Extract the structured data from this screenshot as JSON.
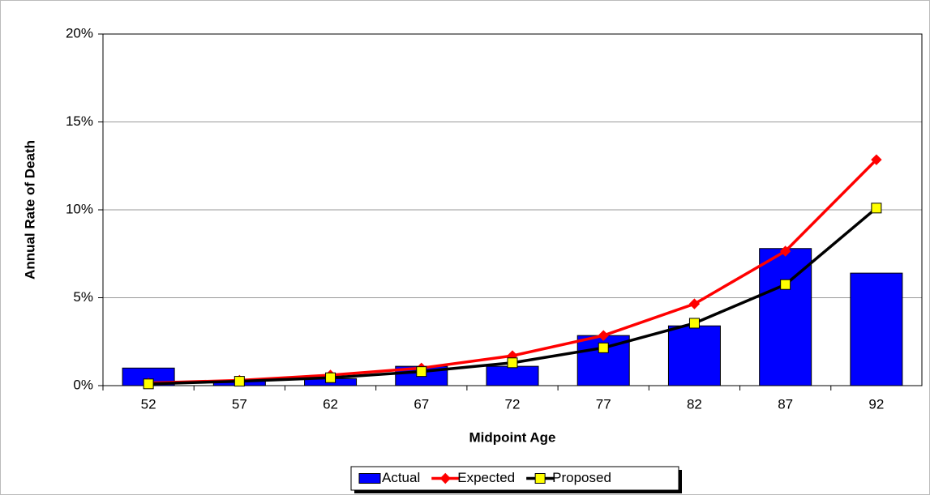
{
  "chart_data": {
    "type": "combo",
    "x_label": "Midpoint Age",
    "y_label": "Annual Rate of Death",
    "categories": [
      "52",
      "57",
      "62",
      "67",
      "72",
      "77",
      "82",
      "87",
      "92"
    ],
    "series": [
      {
        "name": "Actual",
        "type": "bar",
        "color": "#0000ff",
        "values": [
          1.0,
          0.3,
          0.4,
          1.1,
          1.1,
          2.85,
          3.4,
          7.8,
          6.4
        ]
      },
      {
        "name": "Expected",
        "type": "line",
        "marker": "diamond",
        "color": "#ff0000",
        "marker_color": "#ff0000",
        "values": [
          0.15,
          0.3,
          0.6,
          1.0,
          1.7,
          2.85,
          4.65,
          7.65,
          12.85
        ]
      },
      {
        "name": "Proposed",
        "type": "line",
        "marker": "square",
        "color": "#000000",
        "marker_color": "#ffff00",
        "values": [
          0.1,
          0.25,
          0.45,
          0.8,
          1.3,
          2.15,
          3.55,
          5.75,
          10.1
        ]
      }
    ],
    "ylim": [
      0,
      20
    ],
    "yticks": [
      {
        "value": 0,
        "label": "0%"
      },
      {
        "value": 5,
        "label": "5%"
      },
      {
        "value": 10,
        "label": "10%"
      },
      {
        "value": 15,
        "label": "15%"
      },
      {
        "value": 20,
        "label": "20%"
      }
    ],
    "grid": true,
    "legend": "bottom"
  }
}
